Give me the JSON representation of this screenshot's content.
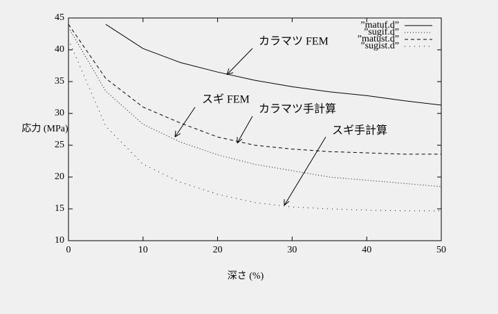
{
  "chart_data": {
    "type": "line",
    "x_label": "深さ (%)",
    "y_label": "応力 (MPa)",
    "xlim": [
      0,
      50
    ],
    "xticks": [
      0,
      10,
      20,
      30,
      40,
      50
    ],
    "ylim": [
      10,
      45
    ],
    "yticks": [
      10,
      15,
      20,
      25,
      30,
      35,
      40,
      45
    ],
    "grid": false,
    "legend": "top-right",
    "series": [
      {
        "name": "”matuf.d”",
        "color": "#000000",
        "line_style": "solid",
        "x": [
          5,
          10,
          15,
          20,
          25,
          30,
          35,
          40,
          45,
          50
        ],
        "values": [
          44,
          40.2,
          38,
          36.5,
          35.2,
          34.2,
          33.4,
          32.8,
          32,
          31.3
        ]
      },
      {
        "name": "”sugif.d”",
        "color": "#000000",
        "line_style": "dotted",
        "x": [
          0,
          5,
          10,
          15,
          20,
          25,
          30,
          35,
          40,
          45,
          50
        ],
        "values": [
          43.5,
          33.5,
          28.3,
          25.5,
          23.5,
          22,
          21,
          20,
          19.5,
          19,
          18.5
        ]
      },
      {
        "name": "”matust.d”",
        "color": "#000000",
        "line_style": "dashed",
        "x": [
          0,
          5,
          10,
          15,
          20,
          25,
          30,
          35,
          40,
          45,
          50
        ],
        "values": [
          44,
          35.5,
          31,
          28.5,
          26.3,
          25,
          24.4,
          24,
          23.8,
          23.6,
          23.6
        ]
      },
      {
        "name": "”sugist.d”",
        "color": "#000000",
        "line_style": "sparse-dotted",
        "x": [
          0,
          5,
          10,
          15,
          20,
          25,
          30,
          35,
          40,
          45,
          50
        ],
        "values": [
          41.6,
          28,
          22,
          19.2,
          17.3,
          16,
          15.3,
          15,
          14.8,
          14.7,
          14.7
        ]
      }
    ],
    "annotations": [
      "カラマツ FEM",
      "スギ FEM",
      "カラマツ手計算",
      "スギ手計算"
    ]
  }
}
